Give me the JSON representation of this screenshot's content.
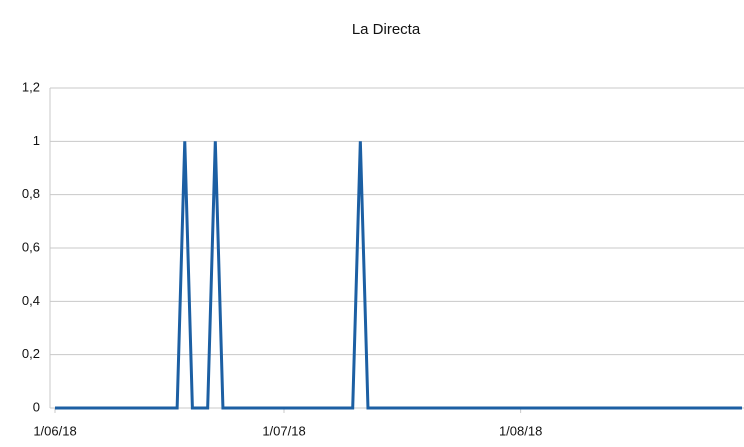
{
  "chart_data": {
    "type": "line",
    "title": "La Directa",
    "x": [
      0,
      1,
      2,
      3,
      4,
      5,
      6,
      7,
      8,
      9,
      10,
      11,
      12,
      13,
      14,
      15,
      16,
      17,
      18,
      19,
      20,
      21,
      22,
      23,
      24,
      25,
      26,
      27,
      28,
      29,
      30,
      31,
      32,
      33,
      34,
      35,
      36,
      37,
      38,
      39,
      40,
      41,
      42,
      43,
      44,
      45,
      46,
      47,
      48,
      49,
      50,
      51,
      52,
      53,
      54,
      55,
      56,
      57,
      58,
      59,
      60,
      61,
      62,
      63,
      64,
      65,
      66,
      67,
      68,
      69,
      70,
      71,
      72,
      73,
      74,
      75,
      76,
      77,
      78,
      79,
      80,
      81,
      82,
      83,
      84,
      85,
      86,
      87,
      88,
      89,
      90
    ],
    "series": [
      {
        "name": "La Directa",
        "color": "#1c5fa3",
        "values": [
          0,
          0,
          0,
          0,
          0,
          0,
          0,
          0,
          0,
          0,
          0,
          0,
          0,
          0,
          0,
          0,
          0,
          1,
          0,
          0,
          0,
          1,
          0,
          0,
          0,
          0,
          0,
          0,
          0,
          0,
          0,
          0,
          0,
          0,
          0,
          0,
          0,
          0,
          0,
          0,
          1,
          0,
          0,
          0,
          0,
          0,
          0,
          0,
          0,
          0,
          0,
          0,
          0,
          0,
          0,
          0,
          0,
          0,
          0,
          0,
          0,
          0,
          0,
          0,
          0,
          0,
          0,
          0,
          0,
          0,
          0,
          0,
          0,
          0,
          0,
          0,
          0,
          0,
          0,
          0,
          0,
          0,
          0,
          0,
          0,
          0,
          0,
          0,
          0,
          0,
          0
        ]
      }
    ],
    "xlim": [
      0,
      90
    ],
    "xticks": [
      {
        "value": 0,
        "label": "1/06/18"
      },
      {
        "value": 30,
        "label": "1/07/18"
      },
      {
        "value": 61,
        "label": "1/08/18"
      }
    ],
    "ylim": [
      0,
      1.2
    ],
    "yticks": [
      0,
      {
        "value": 0.2,
        "label": "0,2"
      },
      {
        "value": 0.4,
        "label": "0,4"
      },
      {
        "value": 0.6,
        "label": "0,6"
      },
      {
        "value": 0.8,
        "label": "0,8"
      },
      1,
      {
        "value": 1.2,
        "label": "1,2"
      }
    ],
    "grid": true
  }
}
